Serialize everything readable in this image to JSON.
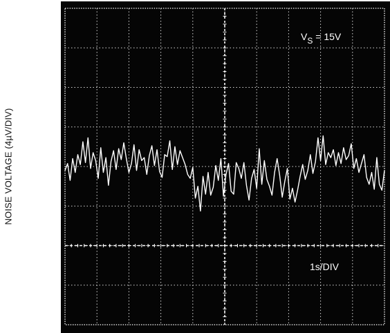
{
  "chart_data": {
    "type": "line",
    "title": "",
    "ylabel": "NOISE VOLTAGE (4µV/DIV)",
    "xlabel": "",
    "annotations": {
      "supply": {
        "main": "V",
        "sub": "S",
        "rest": " = 15V"
      },
      "timebase": "1s/DIV"
    },
    "grid": true,
    "divisions": {
      "x": 10,
      "y": 8
    },
    "xlim": [
      0,
      10
    ],
    "ylim": [
      -16,
      16
    ],
    "reference_level": -8,
    "series": [
      {
        "values": [
          -0.4,
          0.3,
          -1.4,
          0.8,
          -0.6,
          1.2,
          0.2,
          2.5,
          0.4,
          2.9,
          -0.2,
          1.4,
          0.6,
          -1.2,
          1.9,
          -0.6,
          0.9,
          -1.9,
          0.5,
          1.6,
          -0.3,
          1.8,
          0.7,
          2.4,
          0.8,
          -0.6,
          0.3,
          2.2,
          -0.4,
          1.7,
          0.6,
          0.9,
          -0.8,
          1.1,
          2.1,
          0.1,
          1.7,
          -0.5,
          -1.1,
          1.2,
          1.0,
          2.6,
          -0.3,
          2.0,
          0.2,
          1.6,
          0.9,
          0.2,
          -0.8,
          -1.2,
          -0.1,
          -3.2,
          -2.0,
          -4.5,
          -1.0,
          -2.8,
          -0.6,
          -2.9,
          -2.1,
          0.1,
          -1.4,
          0.8,
          -3.0,
          -0.8,
          0.3,
          -2.5,
          -2.8,
          0.4,
          -0.2,
          -1.2,
          0.4,
          -1.9,
          -3.4,
          -1.2,
          -0.3,
          -2.2,
          1.8,
          -1.8,
          0.6,
          -1.3,
          -2.0,
          -2.9,
          -0.6,
          0.8,
          -0.9,
          -3.1,
          -1.5,
          -0.2,
          -3.3,
          -2.2,
          -3.6,
          -2.4,
          -1.0,
          0.2,
          -1.3,
          -0.4,
          1.2,
          -0.7,
          0.5,
          2.9,
          0.6,
          3.1,
          0.2,
          1.4,
          0.9,
          1.7,
          0.1,
          1.4,
          0.3,
          1.9,
          0.7,
          1.1,
          2.3,
          -0.2,
          0.8,
          -0.6,
          0.3,
          1.2,
          -1.1,
          -1.8,
          -0.6,
          -2.3,
          0.9,
          -1.8,
          -2.4,
          -0.4
        ]
      }
    ]
  }
}
